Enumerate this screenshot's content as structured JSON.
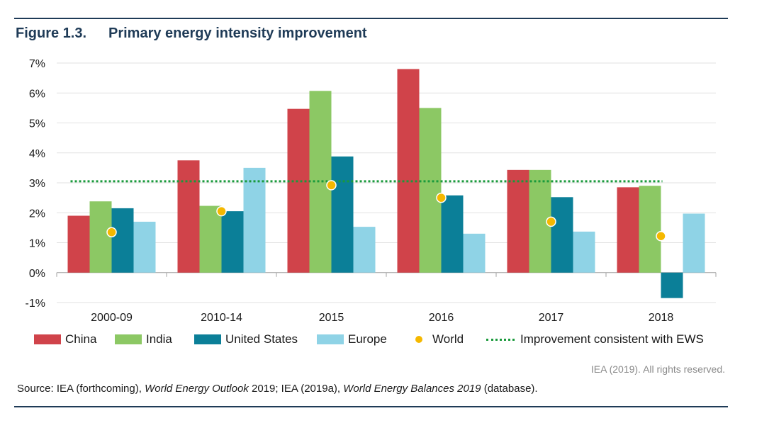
{
  "figure": {
    "number": "Figure 1.3.",
    "title": "Primary energy intensity improvement"
  },
  "chart_data": {
    "type": "bar",
    "categories": [
      "2000-09",
      "2010-14",
      "2015",
      "2016",
      "2017",
      "2018"
    ],
    "series": [
      {
        "name": "China",
        "color": "#d0434a",
        "values": [
          1.9,
          3.75,
          5.47,
          6.8,
          3.43,
          2.85
        ]
      },
      {
        "name": "India",
        "color": "#8cc864",
        "values": [
          2.38,
          2.23,
          6.07,
          5.5,
          3.43,
          2.9
        ]
      },
      {
        "name": "United States",
        "color": "#0b7f98",
        "values": [
          2.15,
          2.05,
          3.88,
          2.58,
          2.52,
          -0.85
        ]
      },
      {
        "name": "Europe",
        "color": "#8fd3e6",
        "values": [
          1.7,
          3.5,
          1.53,
          1.3,
          1.37,
          1.97
        ]
      }
    ],
    "world": {
      "name": "World",
      "color": "#f5b800",
      "values": [
        1.35,
        2.05,
        2.92,
        2.5,
        1.7,
        1.22
      ]
    },
    "target_line": {
      "name": "Improvement consistent with EWS",
      "color": "#1a9a3c",
      "value": 3.05
    },
    "y_ticks": [
      "7%",
      "6%",
      "5%",
      "4%",
      "3%",
      "2%",
      "1%",
      "0%",
      "-1%"
    ],
    "y_tick_values": [
      7,
      6,
      5,
      4,
      3,
      2,
      1,
      0,
      -1
    ],
    "ylim": [
      -1,
      7
    ],
    "grid": true,
    "legend_position": "bottom",
    "xlabel": "",
    "ylabel": ""
  },
  "legend": {
    "china": "China",
    "india": "India",
    "us": "United States",
    "europe": "Europe",
    "world": "World",
    "ews": "Improvement consistent with EWS"
  },
  "rights": "IEA (2019). All rights reserved.",
  "source": {
    "prefix": "Source: IEA (forthcoming), ",
    "weo": "World Energy Outlook",
    "mid1": " 2019; IEA (2019a), ",
    "web": "World Energy Balances 2019",
    "suffix": " (database)."
  }
}
